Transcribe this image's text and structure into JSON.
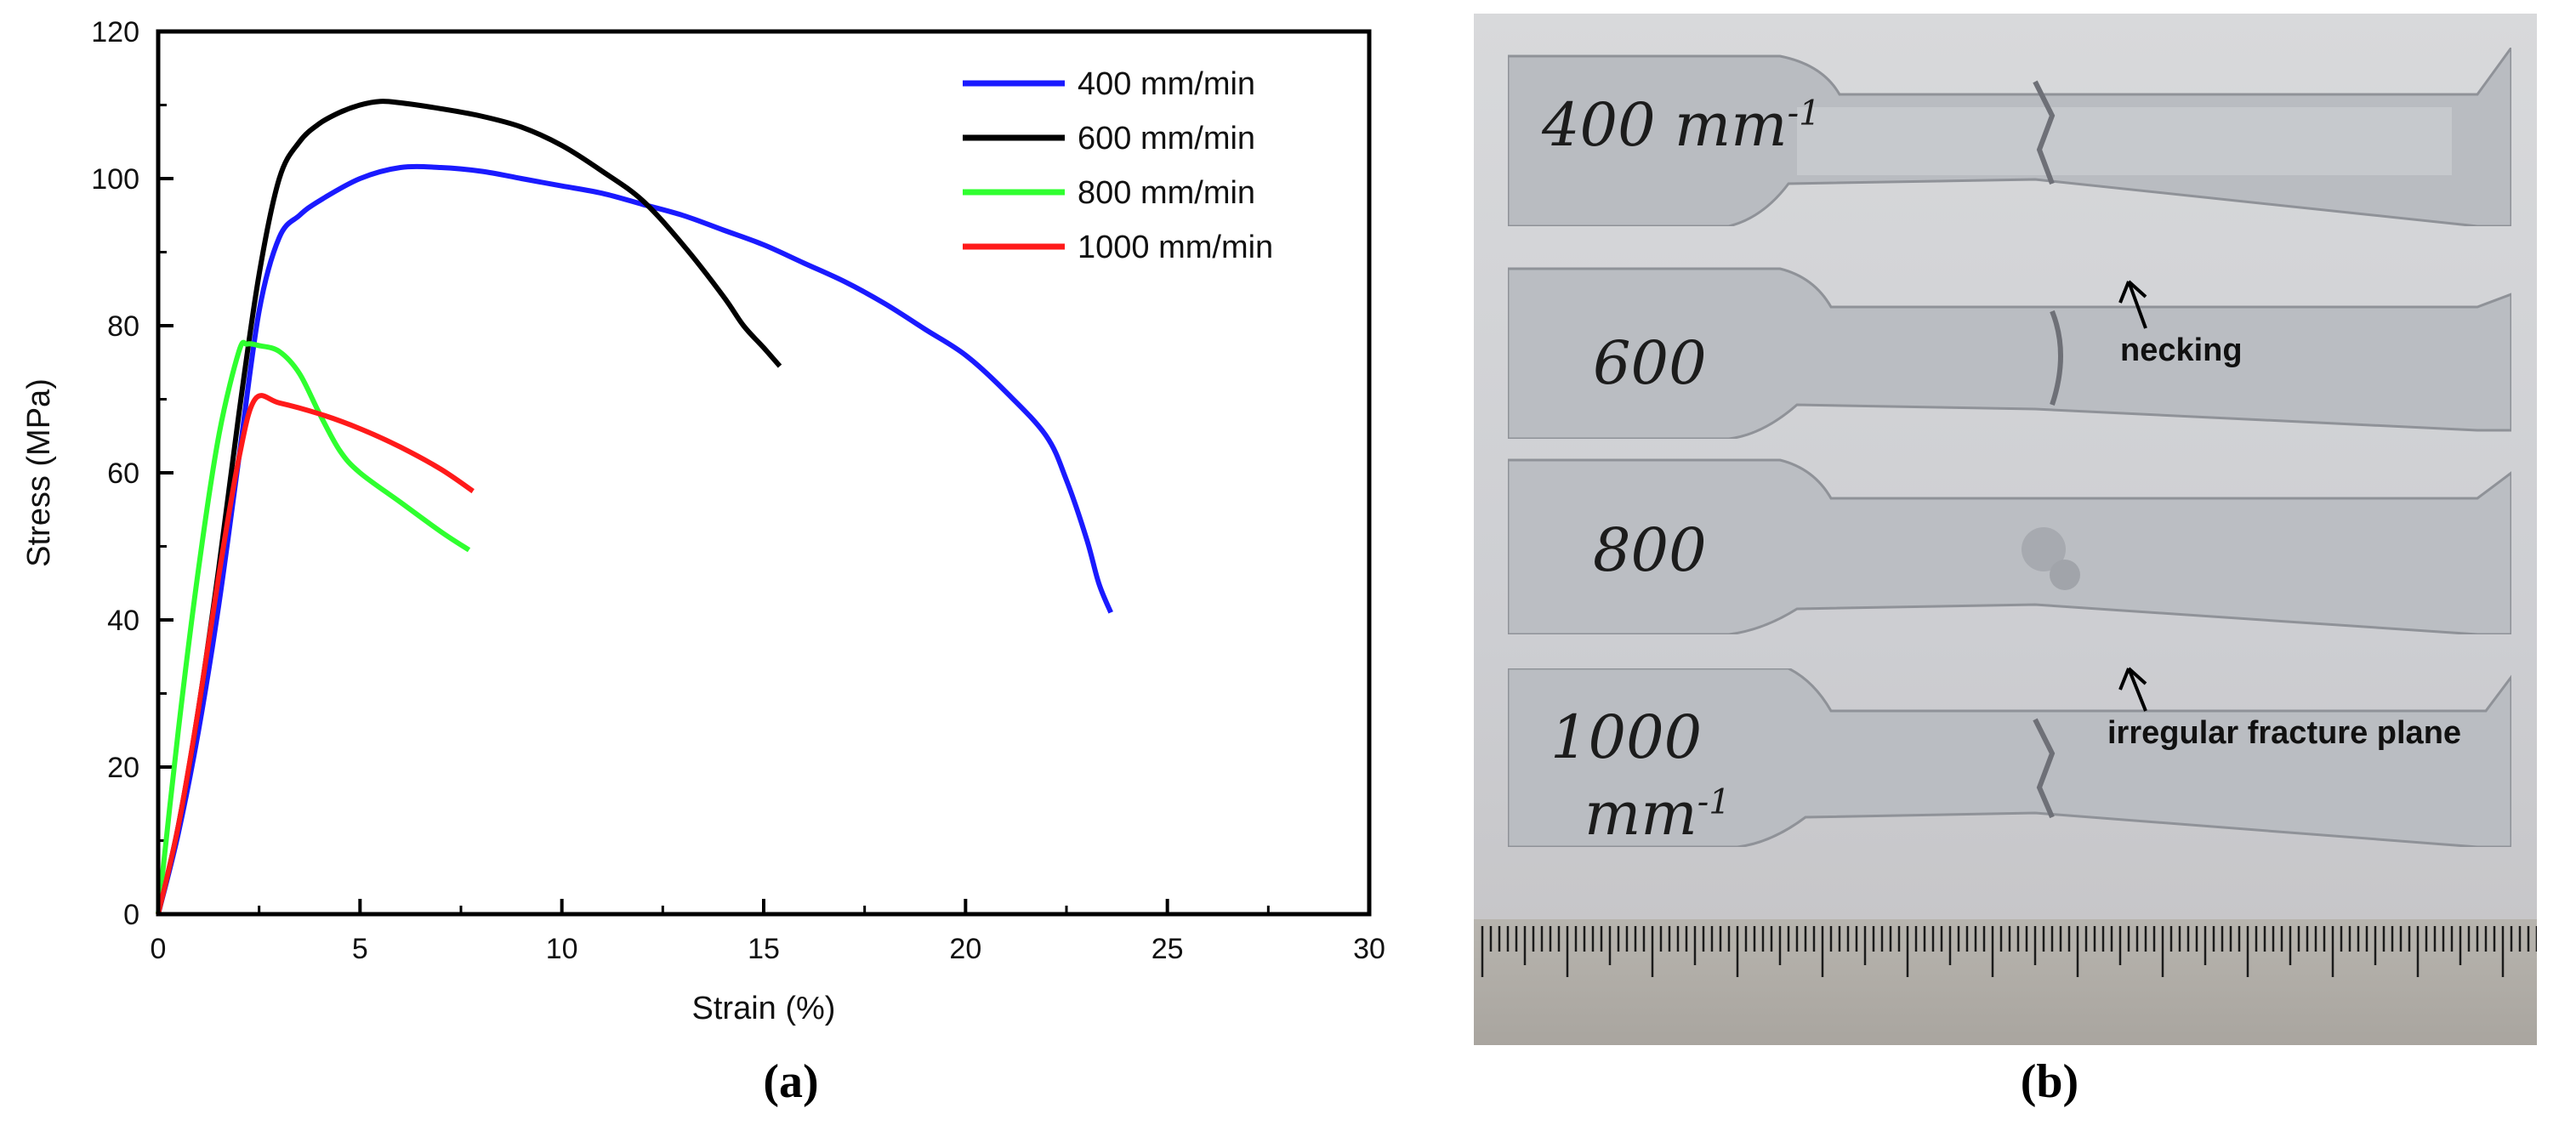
{
  "chart_data": {
    "type": "line",
    "title": "",
    "xlabel": "Strain (%)",
    "ylabel": "Stress (MPa)",
    "xlim": [
      0,
      30
    ],
    "ylim": [
      0,
      120
    ],
    "xticks": [
      "0",
      "5",
      "10",
      "15",
      "20",
      "25",
      "30"
    ],
    "yticks": [
      "0",
      "20",
      "40",
      "60",
      "80",
      "100",
      "120"
    ],
    "legend_position": "top-right",
    "series": [
      {
        "name": "400 mm/min",
        "color": "#1a1aff",
        "x": [
          0,
          0.5,
          1.0,
          1.5,
          2.0,
          2.5,
          3.0,
          3.5,
          4.0,
          5.0,
          6.0,
          7.0,
          8.0,
          9.0,
          10.0,
          11.0,
          12.0,
          13.0,
          14.0,
          15.0,
          16.0,
          17.0,
          18.0,
          19.0,
          20.0,
          21.0,
          22.0,
          22.5,
          23.0,
          23.3,
          23.6
        ],
        "y": [
          0,
          11,
          25,
          42,
          62,
          82,
          92,
          95,
          97,
          100,
          101.5,
          101.5,
          101,
          100,
          99,
          98,
          96.5,
          95,
          93,
          91,
          88.5,
          86,
          83,
          79.5,
          76,
          71,
          65,
          59,
          51,
          45,
          41
        ]
      },
      {
        "name": "600 mm/min",
        "color": "#000000",
        "x": [
          0,
          0.5,
          1.0,
          1.5,
          2.0,
          2.5,
          3.0,
          3.5,
          4.0,
          4.5,
          5.0,
          5.5,
          6.0,
          7.0,
          8.0,
          9.0,
          10.0,
          11.0,
          12.0,
          13.0,
          14.0,
          14.5,
          15.0,
          15.4
        ],
        "y": [
          0,
          12,
          28,
          47,
          68,
          87,
          100,
          105,
          107.5,
          109,
          110,
          110.5,
          110.3,
          109.5,
          108.5,
          107,
          104.5,
          101,
          97,
          91,
          84,
          80,
          77,
          74.5
        ]
      },
      {
        "name": "800 mm/min",
        "color": "#2fff2f",
        "x": [
          0,
          0.5,
          1.0,
          1.5,
          2.0,
          2.2,
          2.5,
          3.0,
          3.5,
          4.0,
          4.5,
          5.0,
          6.0,
          7.0,
          7.7
        ],
        "y": [
          0,
          25,
          47,
          65,
          76.5,
          77.5,
          77.3,
          76.5,
          73.5,
          68,
          63,
          60,
          56,
          52,
          49.5
        ]
      },
      {
        "name": "1000 mm/min",
        "color": "#ff1a1a",
        "x": [
          0,
          0.5,
          1.0,
          1.5,
          2.0,
          2.4,
          3.0,
          4.0,
          5.0,
          6.0,
          7.0,
          7.8
        ],
        "y": [
          0,
          12,
          28,
          46,
          62,
          70,
          69.5,
          68,
          66,
          63.5,
          60.5,
          57.5
        ]
      }
    ]
  },
  "captions": {
    "a": "(a)",
    "b": "(b)"
  },
  "photo": {
    "specimen_labels": [
      "400 mm",
      "-1",
      "600",
      "800",
      "1000",
      "mm",
      "-1"
    ],
    "annotations": {
      "necking": "necking",
      "fracture": "irregular fracture plane"
    }
  }
}
